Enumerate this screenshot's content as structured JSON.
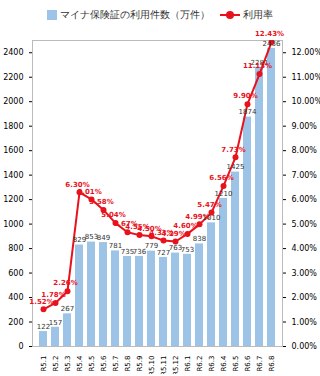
{
  "chart_data": {
    "type": "bar",
    "categories": [
      "R5.1",
      "R5.2",
      "R5.3",
      "R5.4",
      "R5.5",
      "R5.6",
      "R5.7",
      "R5.8",
      "R5.9",
      "R5.10",
      "R5.11",
      "R5.12",
      "R6.1",
      "R6.2",
      "R6.3",
      "R6.4",
      "R6.5",
      "R6.6",
      "R6.7",
      "R6.8"
    ],
    "series": [
      {
        "name": "マイナ保険証の利用件数（万件）",
        "type": "bar",
        "color": "#9dc3e6",
        "data_labels": true,
        "values": [
          122,
          157,
          267,
          829,
          853,
          849,
          781,
          735,
          736,
          779,
          727,
          763,
          753,
          838,
          1010,
          1210,
          1425,
          1874,
          2281,
          2436
        ]
      },
      {
        "name": "利用率",
        "type": "line",
        "axis": "y2",
        "color": "#e8121c",
        "marker": "circle",
        "data_labels": true,
        "values": [
          1.52,
          1.78,
          2.26,
          6.3,
          6.01,
          5.58,
          5.04,
          4.67,
          4.55,
          4.5,
          4.33,
          4.29,
          4.6,
          4.99,
          5.47,
          6.56,
          7.73,
          9.9,
          11.13,
          12.43
        ],
        "value_labels": [
          "1.52%",
          "1.78%",
          "2.26%",
          "6.30%",
          "6.01%",
          "5.58%",
          "5.04%",
          "4.67%",
          "4.55%",
          "4.50%",
          "4.33%",
          "4.29%",
          "4.60%",
          "4.99%",
          "5.47%",
          "6.56%",
          "7.73%",
          "9.90%",
          "11.13%",
          "12.43%"
        ]
      }
    ],
    "ylim": [
      0,
      2500
    ],
    "yticks": [
      0,
      200,
      400,
      600,
      800,
      1000,
      1200,
      1400,
      1600,
      1800,
      2000,
      2200,
      2400
    ],
    "y2lim": [
      0,
      12.5
    ],
    "y2ticks": [
      {
        "value": 0,
        "label": "0.00%"
      },
      {
        "value": 1,
        "label": "1.00%"
      },
      {
        "value": 2,
        "label": "2.00%"
      },
      {
        "value": 3,
        "label": "3.00%"
      },
      {
        "value": 4,
        "label": "4.00%"
      },
      {
        "value": 5,
        "label": "5.00%"
      },
      {
        "value": 6,
        "label": "6.00%"
      },
      {
        "value": 7,
        "label": "7.00%"
      },
      {
        "value": 8,
        "label": "8.00%"
      },
      {
        "value": 9,
        "label": "9.00%"
      },
      {
        "value": 10,
        "label": "10.00%"
      },
      {
        "value": 11,
        "label": "11.00%"
      },
      {
        "value": 12,
        "label": "12.00%"
      }
    ],
    "legend": "top",
    "grid": false
  }
}
